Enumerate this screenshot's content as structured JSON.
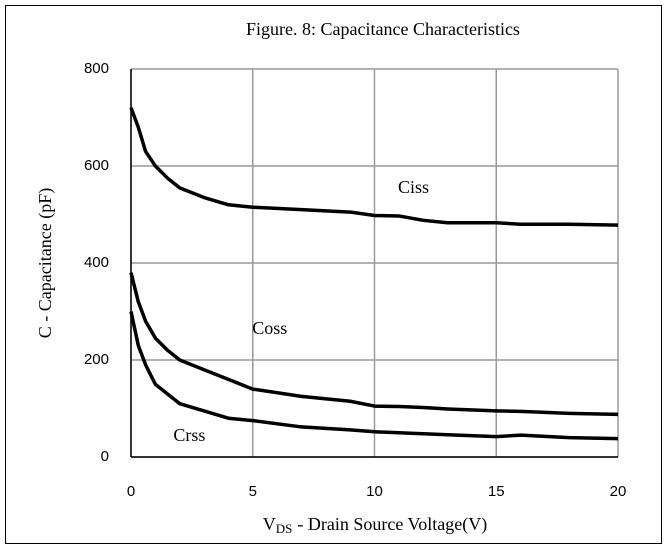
{
  "chart_data": {
    "type": "line",
    "title": "Figure. 8: Capacitance Characteristics",
    "y_label": "C - Capacitance (pF)",
    "x_label": {
      "symbol": "V",
      "subscript": "DS",
      "text": "- Drain Source Voltage(V)"
    },
    "x": [
      0,
      0.3,
      0.6,
      1,
      1.5,
      2,
      3,
      4,
      5,
      7,
      9,
      10,
      11,
      12,
      13,
      15,
      16,
      18,
      20
    ],
    "series": [
      {
        "name": "Ciss",
        "color": "#000000",
        "values": [
          720,
          680,
          630,
          600,
          575,
          555,
          535,
          520,
          515,
          510,
          505,
          498,
          497,
          488,
          483,
          483,
          480,
          480,
          478
        ]
      },
      {
        "name": "Coss",
        "color": "#000000",
        "values": [
          380,
          320,
          280,
          245,
          220,
          200,
          180,
          160,
          140,
          125,
          115,
          105,
          104,
          102,
          99,
          95,
          94,
          90,
          88
        ]
      },
      {
        "name": "Crss",
        "color": "#000000",
        "values": [
          300,
          230,
          190,
          150,
          130,
          110,
          95,
          80,
          75,
          62,
          56,
          52,
          50,
          48,
          46,
          42,
          45,
          40,
          38
        ]
      }
    ],
    "xlim": [
      0,
      20
    ],
    "xticks": [
      0,
      5,
      10,
      15,
      20
    ],
    "ylim": [
      0,
      800
    ],
    "yticks": [
      0,
      200,
      400,
      600,
      800
    ],
    "grid": true
  }
}
